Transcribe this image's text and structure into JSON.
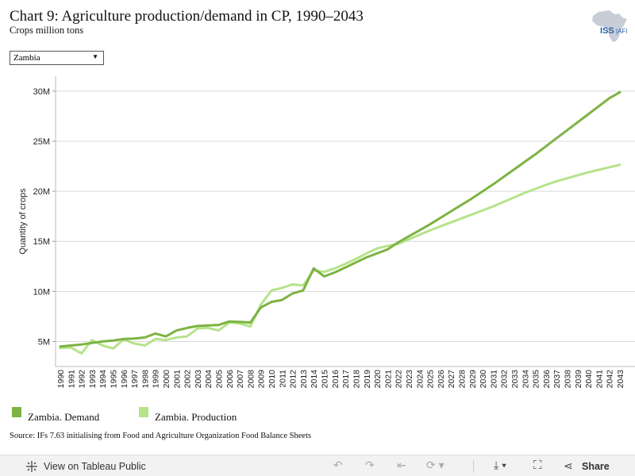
{
  "header": {
    "title": "Chart 9: Agriculture production/demand in CP, 1990–2043",
    "subtitle": "Crops million tons",
    "logo_text": "ISS AFRICA"
  },
  "filter": {
    "selected": "Zambia"
  },
  "legend": [
    {
      "label": "Zambia. Demand",
      "color": "#7cb342"
    },
    {
      "label": "Zambia. Production",
      "color": "#b5e38a"
    }
  ],
  "source": "Source: IFs 7.63 initialising from Food and Agriculture Organization Food Balance Sheets",
  "toolbar": {
    "view_label": "View on Tableau Public",
    "share_label": "Share",
    "undo_icon": "undo-icon",
    "redo_icon": "redo-icon",
    "revert_icon": "revert-icon",
    "refresh_icon": "refresh-icon",
    "download_icon": "download-icon",
    "fullscreen_icon": "fullscreen-icon",
    "share_icon": "share-icon",
    "tableau_icon": "tableau-icon"
  },
  "chart_data": {
    "type": "line",
    "title": "Chart 9: Agriculture production/demand in CP, 1990–2043",
    "ylabel": "Quantity of crops",
    "xlabel": "",
    "ylim": [
      2500000,
      31500000
    ],
    "yticks": [
      5000000,
      10000000,
      15000000,
      20000000,
      25000000,
      30000000
    ],
    "ytick_labels": [
      "5M",
      "10M",
      "15M",
      "20M",
      "25M",
      "30M"
    ],
    "grid": true,
    "legend_position": "bottom-left",
    "x": [
      1990,
      1991,
      1992,
      1993,
      1994,
      1995,
      1996,
      1997,
      1998,
      1999,
      2000,
      2001,
      2002,
      2003,
      2004,
      2005,
      2006,
      2007,
      2008,
      2009,
      2010,
      2011,
      2012,
      2013,
      2014,
      2015,
      2016,
      2017,
      2018,
      2019,
      2020,
      2021,
      2022,
      2023,
      2024,
      2025,
      2026,
      2027,
      2028,
      2029,
      2030,
      2031,
      2032,
      2033,
      2034,
      2035,
      2036,
      2037,
      2038,
      2039,
      2040,
      2041,
      2042,
      2043
    ],
    "series": [
      {
        "name": "Zambia. Demand",
        "color": "#7cb342",
        "values": [
          4500000,
          4600000,
          4700000,
          4850000,
          5000000,
          5100000,
          5250000,
          5300000,
          5400000,
          5800000,
          5500000,
          6100000,
          6350000,
          6550000,
          6600000,
          6650000,
          7000000,
          6950000,
          6900000,
          8400000,
          8950000,
          9150000,
          9800000,
          10100000,
          12300000,
          11500000,
          11900000,
          12400000,
          12900000,
          13400000,
          13800000,
          14200000,
          14900000,
          15500000,
          16100000,
          16700000,
          17350000,
          18000000,
          18650000,
          19300000,
          20000000,
          20700000,
          21450000,
          22200000,
          22950000,
          23700000,
          24500000,
          25300000,
          26100000,
          26900000,
          27700000,
          28500000,
          29300000,
          29900000
        ]
      },
      {
        "name": "Zambia. Production",
        "color": "#b5e38a",
        "values": [
          4350000,
          4400000,
          3800000,
          5150000,
          4600000,
          4300000,
          5200000,
          4800000,
          4600000,
          5250000,
          5150000,
          5400000,
          5500000,
          6300000,
          6350000,
          6100000,
          6900000,
          6800000,
          6500000,
          8700000,
          10100000,
          10350000,
          10700000,
          10600000,
          12100000,
          11950000,
          12300000,
          12750000,
          13250000,
          13800000,
          14300000,
          14550000,
          14750000,
          15200000,
          15650000,
          16100000,
          16500000,
          16900000,
          17300000,
          17700000,
          18100000,
          18500000,
          18950000,
          19400000,
          19850000,
          20250000,
          20650000,
          21000000,
          21300000,
          21600000,
          21900000,
          22150000,
          22400000,
          22650000
        ]
      }
    ]
  }
}
